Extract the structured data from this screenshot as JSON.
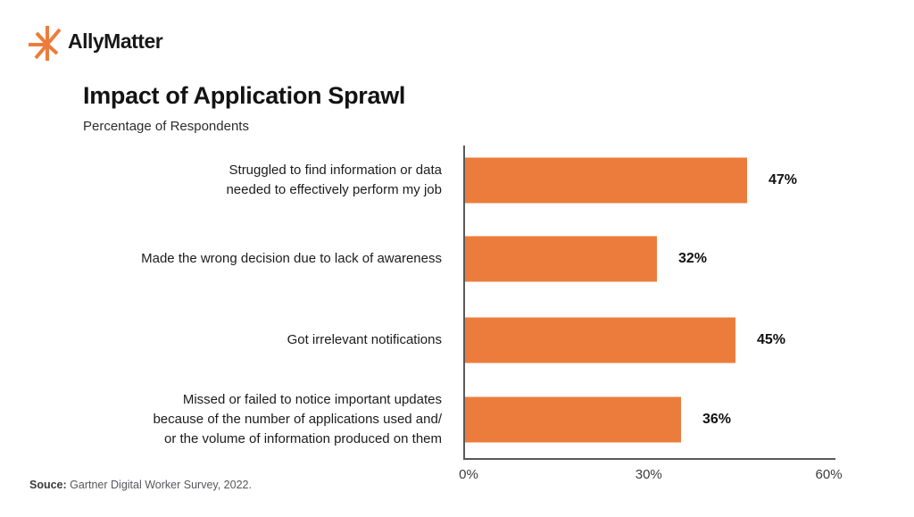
{
  "brand": {
    "name": "AllyMatter",
    "logo_icon": "starburst-icon",
    "accent_color": "#EC7C3B"
  },
  "chart_data": {
    "type": "bar",
    "orientation": "horizontal",
    "title": "Impact of Application Sprawl",
    "subtitle": "Percentage of Respondents",
    "categories": [
      "Struggled to find information or data needed to effectively perform my job",
      "Made the wrong decision due to lack of awareness",
      "Got irrelevant notifications",
      "Missed or failed to notice important updates because of the number of applications used and/or the volume of information produced on them"
    ],
    "category_lines": [
      [
        "Struggled to find information or data",
        "needed to effectively perform my job"
      ],
      [
        "Made the wrong decision due to lack of awareness"
      ],
      [
        "Got irrelevant notifications"
      ],
      [
        "Missed or failed to notice important updates",
        "because of the number of applications used and/",
        "or the volume of information produced on them"
      ]
    ],
    "values": [
      47,
      32,
      45,
      36
    ],
    "value_suffix": "%",
    "xlabel": "",
    "ylabel": "",
    "x_ticks": [
      "0%",
      "30%",
      "60%"
    ],
    "x_tick_values": [
      0,
      30,
      60
    ],
    "xlim": [
      0,
      62
    ],
    "bar_color": "#EC7C3B",
    "grid": false,
    "legend": false
  },
  "source": {
    "prefix": "Souce:",
    "text": " Gartner Digital Worker Survey, 2022."
  }
}
